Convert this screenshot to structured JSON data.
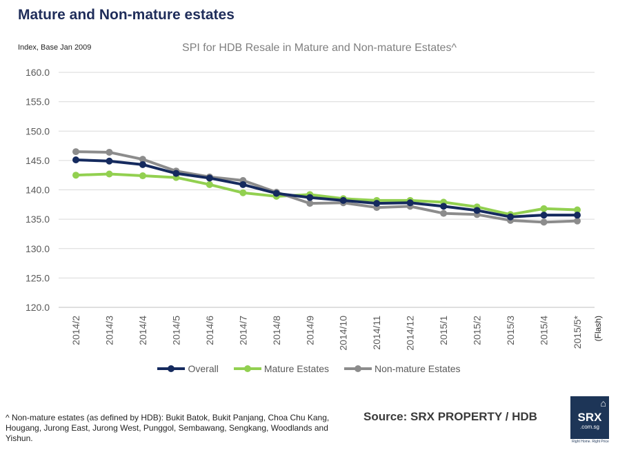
{
  "header": {
    "title": "Mature and Non-mature estates",
    "index_label": "Index, Base Jan 2009"
  },
  "chart_data": {
    "type": "line",
    "title": "SPI for HDB Resale in Mature and Non-mature Estates^",
    "ylabel": "Index, Base Jan 2009",
    "ylim": [
      120,
      160
    ],
    "yticks": [
      "160.0",
      "155.0",
      "150.0",
      "145.0",
      "140.0",
      "135.0",
      "130.0",
      "125.0",
      "120.0"
    ],
    "categories": [
      "2014/2",
      "2014/3",
      "2014/4",
      "2014/5",
      "2014/6",
      "2014/7",
      "2014/8",
      "2014/9",
      "2014/10",
      "2014/11",
      "2014/12",
      "2015/1",
      "2015/2",
      "2015/3",
      "2015/4",
      "2015/5*"
    ],
    "category_note": "(Flash)",
    "grid": true,
    "legend_position": "bottom",
    "series": [
      {
        "name": "Overall",
        "color": "#152a5e",
        "values": [
          145.1,
          144.9,
          144.3,
          142.8,
          142.0,
          140.9,
          139.4,
          138.7,
          138.2,
          137.7,
          137.8,
          137.2,
          136.5,
          135.4,
          135.7,
          135.7
        ]
      },
      {
        "name": "Mature Estates",
        "color": "#92d050",
        "values": [
          142.5,
          142.7,
          142.4,
          142.1,
          140.9,
          139.5,
          138.9,
          139.2,
          138.5,
          138.2,
          138.2,
          137.9,
          137.1,
          135.8,
          136.8,
          136.6
        ]
      },
      {
        "name": "Non-mature Estates",
        "color": "#8c8c8c",
        "values": [
          146.5,
          146.4,
          145.2,
          143.2,
          142.2,
          141.6,
          139.6,
          137.7,
          137.8,
          137.0,
          137.2,
          136.0,
          135.8,
          134.8,
          134.5,
          134.7
        ]
      }
    ]
  },
  "footer": {
    "footnote": "^ Non-mature estates (as defined by HDB): Bukit Batok, Bukit Panjang, Choa Chu Kang, Hougang, Jurong East, Jurong West, Punggol, Sembawang, Sengkang, Woodlands and Yishun.",
    "source": "Source:  SRX PROPERTY / HDB"
  },
  "logo": {
    "main": "SRX",
    "sub": ".com.sg",
    "tagline": "Right Home. Right Price",
    "icon": "house-icon"
  }
}
